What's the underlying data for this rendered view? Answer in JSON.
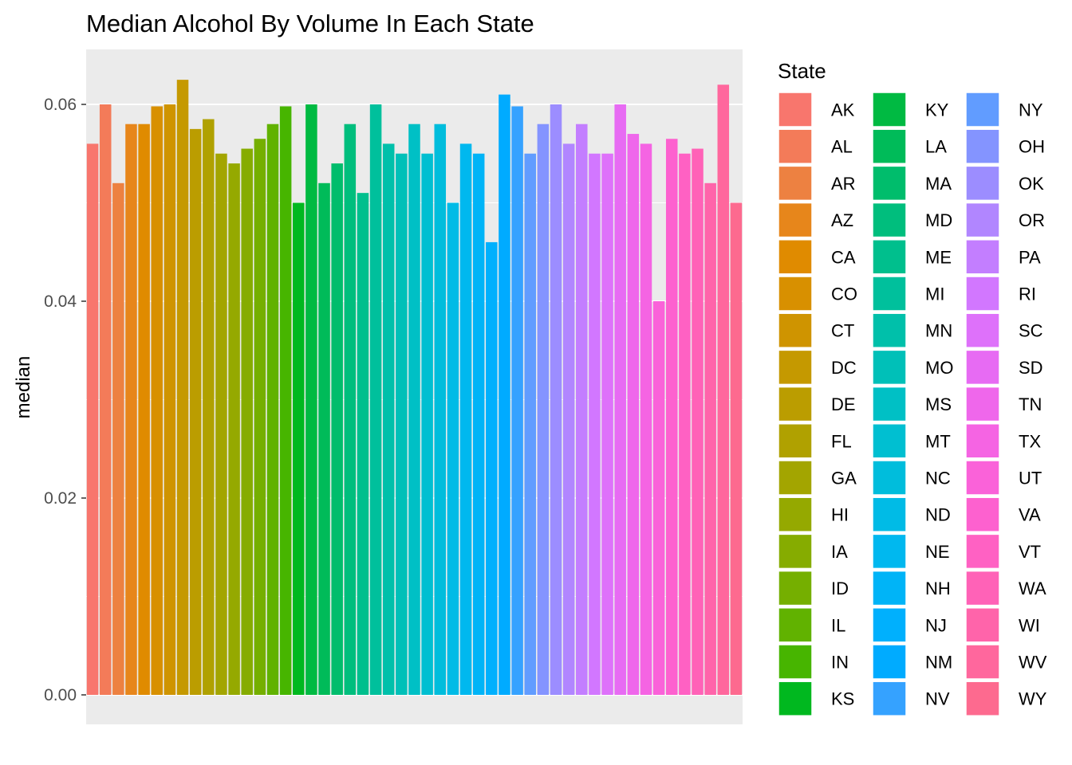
{
  "chart_data": {
    "type": "bar",
    "title": "Median Alcohol By Volume In Each State",
    "xlabel": "",
    "ylabel": "median",
    "ylim": [
      0,
      0.0685
    ],
    "yticks": [
      "0.00",
      "0.02",
      "0.04",
      "0.06"
    ],
    "ytick_values": [
      0,
      0.02,
      0.04,
      0.06
    ],
    "grid": true,
    "legend_title": "State",
    "legend_placement": "right",
    "panel_background": "#ebebeb",
    "categories": [
      "AK",
      "AL",
      "AR",
      "AZ",
      "CA",
      "CO",
      "CT",
      "DC",
      "DE",
      "FL",
      "GA",
      "HI",
      "IA",
      "ID",
      "IL",
      "IN",
      "KS",
      "KY",
      "LA",
      "MA",
      "MD",
      "ME",
      "MI",
      "MN",
      "MO",
      "MS",
      "MT",
      "NC",
      "ND",
      "NE",
      "NH",
      "NJ",
      "NM",
      "NV",
      "NY",
      "OH",
      "OK",
      "OR",
      "PA",
      "RI",
      "SC",
      "SD",
      "TN",
      "TX",
      "UT",
      "VA",
      "VT",
      "WA",
      "WI",
      "WV",
      "WY"
    ],
    "values": [
      0.056,
      0.06,
      0.052,
      0.058,
      0.058,
      0.0598,
      0.06,
      0.0625,
      0.0575,
      0.0585,
      0.055,
      0.054,
      0.0555,
      0.0565,
      0.058,
      0.0598,
      0.05,
      0.06,
      0.052,
      0.054,
      0.058,
      0.051,
      0.06,
      0.056,
      0.055,
      0.058,
      0.055,
      0.058,
      0.05,
      0.056,
      0.055,
      0.046,
      0.061,
      0.0598,
      0.055,
      0.058,
      0.06,
      0.056,
      0.058,
      0.055,
      0.055,
      0.06,
      0.057,
      0.056,
      0.04,
      0.0565,
      0.055,
      0.0555,
      0.052,
      0.062,
      0.05
    ],
    "colors": [
      "#F8766D",
      "#F37B59",
      "#ED8141",
      "#E7861B",
      "#E08B00",
      "#D89000",
      "#CF9400",
      "#C59900",
      "#BB9D00",
      "#B0A100",
      "#A3A500",
      "#95A900",
      "#86AC00",
      "#75AF00",
      "#61B200",
      "#47B500",
      "#00B81F",
      "#00BA42",
      "#00BB59",
      "#00BD6C",
      "#00BE7D",
      "#00BF8D",
      "#00C09C",
      "#00C0AA",
      "#00C0B8",
      "#00C0C5",
      "#00BFD1",
      "#00BDDC",
      "#00BBE6",
      "#00B8EF",
      "#00B4F7",
      "#00B0FD",
      "#00ABFF",
      "#35A2FF",
      "#619CFF",
      "#8494FF",
      "#9C8DFF",
      "#B186FF",
      "#C37EFF",
      "#D277FF",
      "#DE71FA",
      "#E76BF3",
      "#EF67EB",
      "#F564E3",
      "#FA62D9",
      "#FD61CF",
      "#FF61C3",
      "#FF62B7",
      "#FF64AA",
      "#FF679D",
      "#FD6A8F"
    ]
  }
}
